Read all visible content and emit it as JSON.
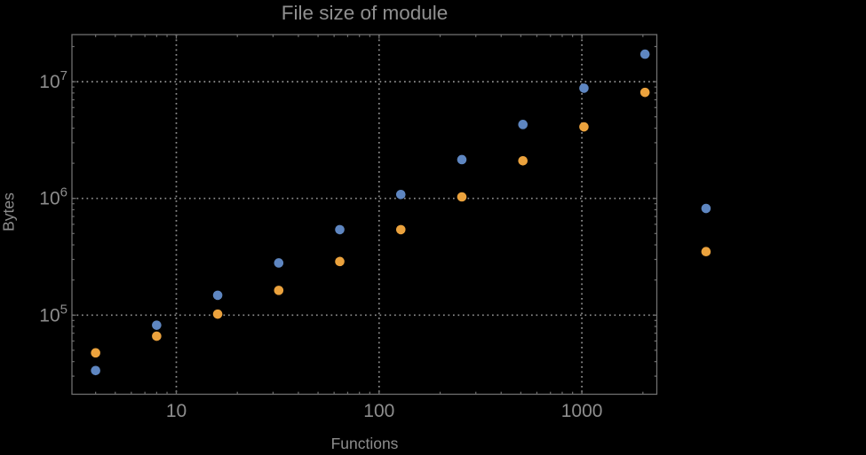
{
  "figure": {
    "background": "#000000",
    "title": "File size of module",
    "xlabel": "Functions",
    "ylabel": "Bytes"
  },
  "colors": {
    "background": "#000000",
    "frame": "#6f6f6f",
    "ticks": "#6f6f6f",
    "grid": "#8f8f8f",
    "tick_label": "#8d8d8d",
    "title": "#8f8f8f",
    "axis_label": "#8d8d8d",
    "series_blue": "#5e86c1",
    "series_orange": "#eba23d"
  },
  "chart_data": {
    "type": "scatter",
    "title": "File size of module",
    "xlabel": "Functions",
    "ylabel": "Bytes",
    "xscale": "log",
    "yscale": "log",
    "xlim": [
      3.1,
      2360
    ],
    "ylim": [
      21000,
      25400000
    ],
    "grid": "major gridlines only, dotted gray",
    "legend_position": "none",
    "frame": "boxed frame with inward log minor ticks on all four sides",
    "x": [
      4,
      8,
      16,
      32,
      64,
      128,
      256,
      512,
      1024,
      2048,
      4096
    ],
    "series": [
      {
        "name": "series-blue",
        "color": "#5e86c1",
        "values": [
          33500,
          82000,
          148000,
          280000,
          540000,
          1080000,
          2150000,
          4300000,
          8800000,
          17200000,
          820000
        ]
      },
      {
        "name": "series-orange",
        "color": "#eba23d",
        "values": [
          47500,
          66000,
          102000,
          163000,
          288000,
          540000,
          1030000,
          2100000,
          4100000,
          8100000,
          350000
        ]
      }
    ],
    "x_major_ticks": [
      10,
      100,
      1000
    ],
    "x_tick_labels": [
      "10",
      "100",
      "1000"
    ],
    "y_major_ticks": [
      100000,
      1000000,
      10000000
    ],
    "y_tick_labels": [
      {
        "base": "10",
        "exp": "5"
      },
      {
        "base": "10",
        "exp": "6"
      },
      {
        "base": "10",
        "exp": "7"
      }
    ],
    "note": "points at x=4096 fall outside (right of) the plot frame and are drawn unclipped"
  }
}
